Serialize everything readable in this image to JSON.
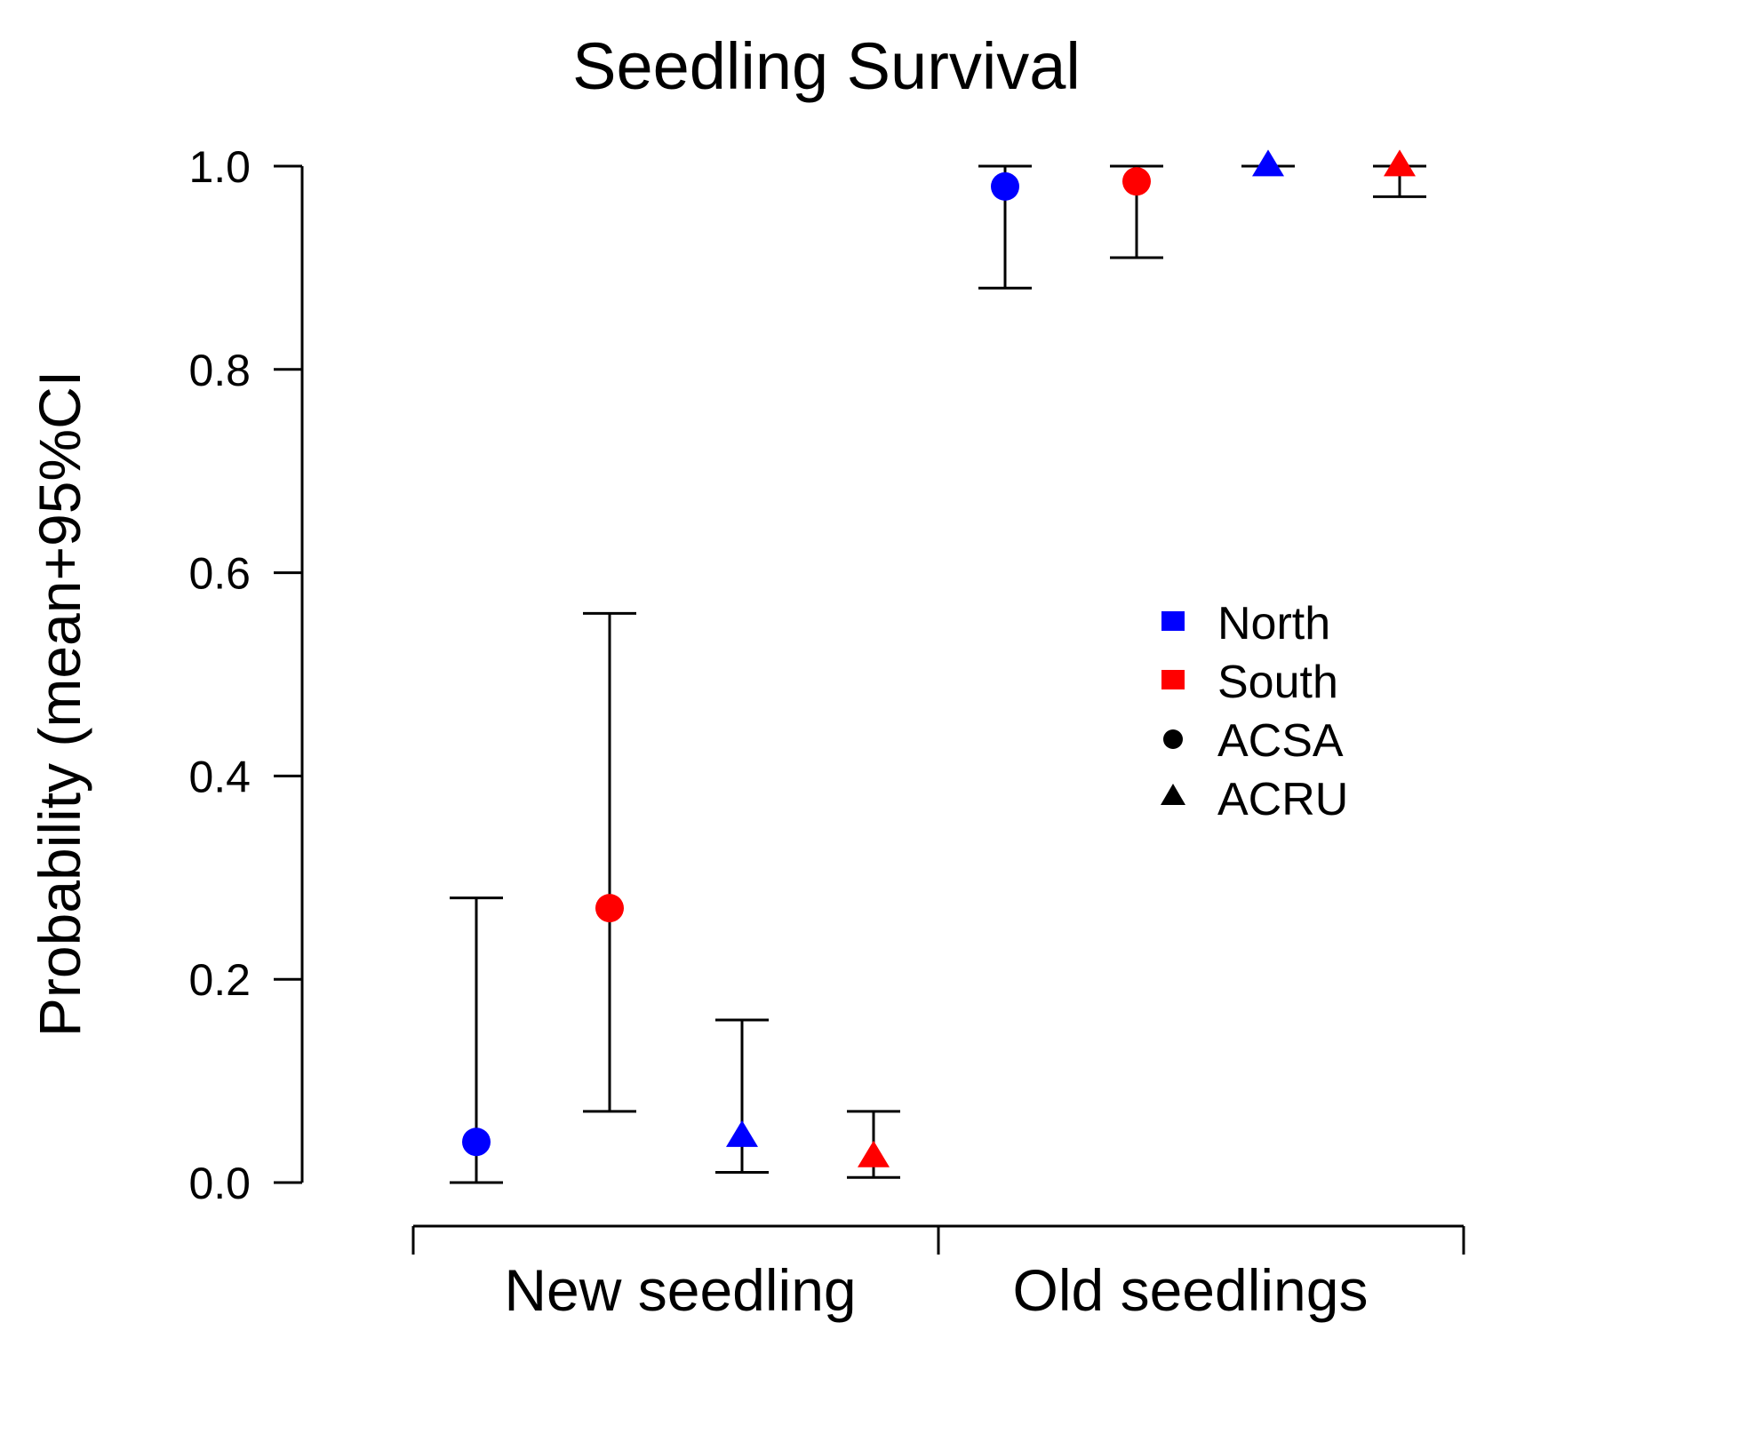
{
  "chart_data": {
    "type": "scatter",
    "title": "Seedling Survival",
    "ylabel": "Probability (mean+95%CI",
    "xlabel": "",
    "ylim": [
      0,
      1
    ],
    "yticks": [
      "0.0",
      "0.2",
      "0.4",
      "0.6",
      "0.8",
      "1.0"
    ],
    "groups": [
      "New seedling",
      "Old seedlings"
    ],
    "colors": {
      "North": "#0000ff",
      "South": "#ff0000"
    },
    "shapes": {
      "ACSA": "circle",
      "ACRU": "triangle"
    },
    "points": [
      {
        "group": "New seedling",
        "region": "North",
        "species": "ACSA",
        "mean": 0.04,
        "lower": 0.0,
        "upper": 0.28
      },
      {
        "group": "New seedling",
        "region": "South",
        "species": "ACSA",
        "mean": 0.27,
        "lower": 0.07,
        "upper": 0.56
      },
      {
        "group": "New seedling",
        "region": "North",
        "species": "ACRU",
        "mean": 0.045,
        "lower": 0.01,
        "upper": 0.16
      },
      {
        "group": "New seedling",
        "region": "South",
        "species": "ACRU",
        "mean": 0.025,
        "lower": 0.005,
        "upper": 0.07
      },
      {
        "group": "Old seedlings",
        "region": "North",
        "species": "ACSA",
        "mean": 0.98,
        "lower": 0.88,
        "upper": 1.0
      },
      {
        "group": "Old seedlings",
        "region": "South",
        "species": "ACSA",
        "mean": 0.985,
        "lower": 0.91,
        "upper": 1.0
      },
      {
        "group": "Old seedlings",
        "region": "North",
        "species": "ACRU",
        "mean": 1.0,
        "lower": 1.0,
        "upper": 1.0
      },
      {
        "group": "Old seedlings",
        "region": "South",
        "species": "ACRU",
        "mean": 1.0,
        "lower": 0.97,
        "upper": 1.0
      }
    ],
    "legend": [
      {
        "label": "North",
        "marker": "square",
        "color": "#0000ff"
      },
      {
        "label": "South",
        "marker": "square",
        "color": "#ff0000"
      },
      {
        "label": "ACSA",
        "marker": "circle",
        "color": "#000000"
      },
      {
        "label": "ACRU",
        "marker": "triangle",
        "color": "#000000"
      }
    ],
    "legend_position": "right",
    "grid": false
  }
}
